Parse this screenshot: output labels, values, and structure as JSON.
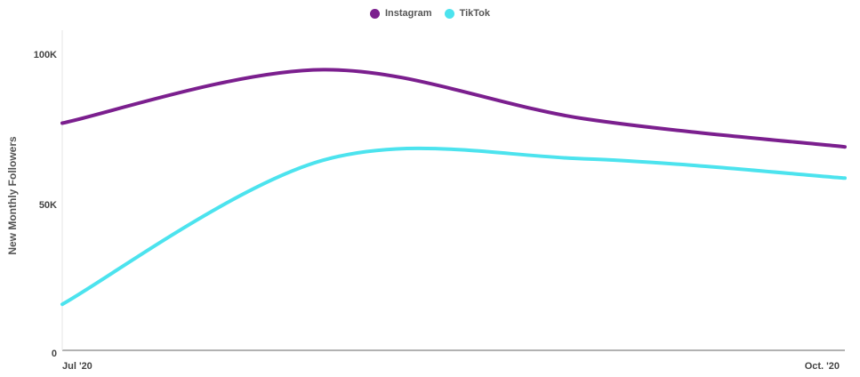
{
  "chart_data": {
    "type": "line",
    "title": "",
    "xlabel": "",
    "ylabel": "New Monthly Followers",
    "x_tick_labels": [
      "Jul '20",
      "Oct. '20"
    ],
    "y_tick_labels": [
      "100K",
      "50K",
      "0"
    ],
    "ylim": [
      0,
      100000
    ],
    "grid": false,
    "legend_position": "top-center",
    "x": [
      0,
      1,
      2,
      3
    ],
    "series": [
      {
        "name": "Instagram",
        "color": "#7B1F8E",
        "values": [
          76500,
          94500,
          78000,
          68500
        ]
      },
      {
        "name": "TikTok",
        "color": "#4CE3EE",
        "values": [
          15500,
          64000,
          64500,
          58000
        ]
      }
    ]
  }
}
